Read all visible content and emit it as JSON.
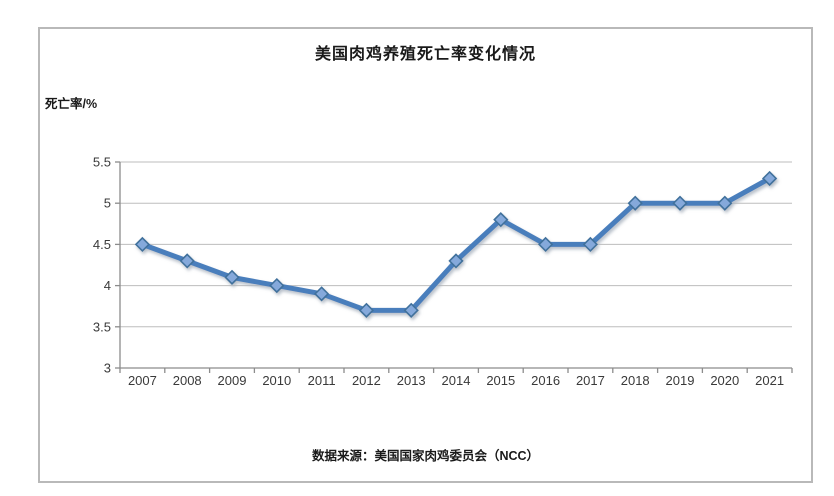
{
  "chart_data": {
    "type": "line",
    "title": "美国肉鸡养殖死亡率变化情况",
    "ylabel": "死亡率/%",
    "xlabel": "",
    "source": "数据来源：美国国家肉鸡委员会（NCC）",
    "categories": [
      "2007",
      "2008",
      "2009",
      "2010",
      "2011",
      "2012",
      "2013",
      "2014",
      "2015",
      "2016",
      "2017",
      "2018",
      "2019",
      "2020",
      "2021"
    ],
    "series": [
      {
        "name": "死亡率",
        "values": [
          4.5,
          4.3,
          4.1,
          4.0,
          3.9,
          3.7,
          3.7,
          4.3,
          4.8,
          4.5,
          4.5,
          5.0,
          5.0,
          5.0,
          5.3
        ]
      }
    ],
    "ylim": [
      3,
      5.5
    ],
    "ytick_values": [
      3,
      3.5,
      4,
      4.5,
      5,
      5.5
    ],
    "ytick_labels": [
      "3",
      "3.5",
      "4",
      "4.5",
      "5",
      "5.5"
    ],
    "grid": true,
    "legend_position": "none",
    "colors": {
      "line": "#4a7ebc",
      "marker_fill": "#85a9db",
      "marker_stroke": "#41719c",
      "gridline": "#bdbdbd",
      "axis": "#8c8c8c",
      "tick_text": "#3a3a3a",
      "frame_border": "#b9b9b9",
      "background": "#ffffff",
      "shadow": "#aab4c0"
    }
  }
}
